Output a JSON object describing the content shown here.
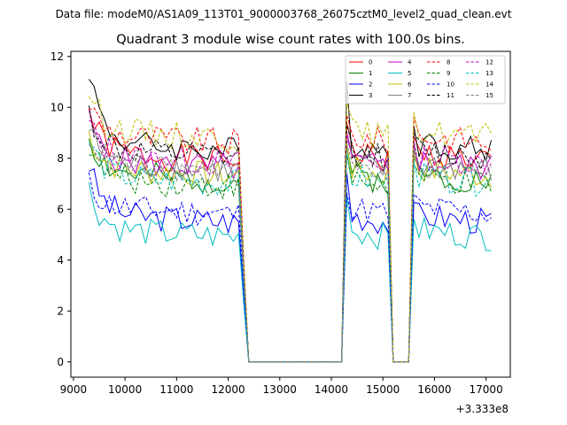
{
  "chart_data": {
    "type": "line",
    "suptitle": "Data file: modeM0/AS1A09_113T01_9000003768_26075cztM0_level2_quad_clean.evt",
    "title": "Quadrant 3 module wise count rates with 100.0s bins.",
    "xlabel": "",
    "ylabel": "",
    "x_offset_label": "+3.333e8",
    "xlim": [
      8950,
      17470
    ],
    "ylim": [
      -0.6,
      12.2
    ],
    "xticks": [
      9000,
      10000,
      11000,
      12000,
      13000,
      14000,
      15000,
      16000,
      17000
    ],
    "yticks": [
      0,
      2,
      4,
      6,
      8,
      10,
      12
    ],
    "xtick_labels": [
      "9000",
      "10000",
      "11000",
      "12000",
      "13000",
      "14000",
      "15000",
      "16000",
      "17000"
    ],
    "ytick_labels": [
      "0",
      "2",
      "4",
      "6",
      "8",
      "10",
      "12"
    ],
    "legend_position": "top-right",
    "legend_columns": 4,
    "series": [
      {
        "name": "0",
        "color": "#ff0000",
        "dash": "solid",
        "base": 8.2,
        "start": 9.9,
        "seed": 1
      },
      {
        "name": "1",
        "color": "#008000",
        "dash": "solid",
        "base": 7.4,
        "start": 8.9,
        "seed": 2
      },
      {
        "name": "2",
        "color": "#0000ff",
        "dash": "solid",
        "base": 5.8,
        "start": 7.8,
        "seed": 3
      },
      {
        "name": "3",
        "color": "#000000",
        "dash": "solid",
        "base": 8.6,
        "start": 11.6,
        "seed": 4
      },
      {
        "name": "4",
        "color": "#bf00bf",
        "dash": "solid",
        "base": 7.9,
        "start": 9.5,
        "seed": 5
      },
      {
        "name": "5",
        "color": "#00bfbf",
        "dash": "solid",
        "base": 5.2,
        "start": 6.8,
        "seed": 6
      },
      {
        "name": "6",
        "color": "#bfbf00",
        "dash": "solid",
        "base": 7.6,
        "start": 9.0,
        "seed": 7
      },
      {
        "name": "7",
        "color": "#808080",
        "dash": "solid",
        "base": 7.8,
        "start": 9.2,
        "seed": 8
      },
      {
        "name": "8",
        "color": "#ff0000",
        "dash": "dashed",
        "base": 8.9,
        "start": 10.2,
        "seed": 9
      },
      {
        "name": "9",
        "color": "#008000",
        "dash": "dashed",
        "base": 7.2,
        "start": 8.6,
        "seed": 10
      },
      {
        "name": "10",
        "color": "#0000ff",
        "dash": "dashed",
        "base": 6.1,
        "start": 7.0,
        "seed": 11
      },
      {
        "name": "11",
        "color": "#000000",
        "dash": "dashed",
        "base": 8.3,
        "start": 9.8,
        "seed": 12
      },
      {
        "name": "12",
        "color": "#bf00bf",
        "dash": "dashed",
        "base": 8.1,
        "start": 9.4,
        "seed": 13
      },
      {
        "name": "13",
        "color": "#00bfbf",
        "dash": "dashed",
        "base": 7.3,
        "start": 8.7,
        "seed": 14
      },
      {
        "name": "14",
        "color": "#bfbf00",
        "dash": "dashed",
        "base": 9.1,
        "start": 10.7,
        "seed": 15
      },
      {
        "name": "15",
        "color": "#808080",
        "dash": "dashed",
        "base": 7.7,
        "start": 9.0,
        "seed": 16
      }
    ],
    "segments": [
      {
        "x_start": 9300,
        "x_end": 12200,
        "bin": 100,
        "level": "active"
      },
      {
        "x_start": 12300,
        "x_end": 12400,
        "bin": 100,
        "level": "falling"
      },
      {
        "x_start": 12400,
        "x_end": 14200,
        "bin": 100,
        "level": "zero"
      },
      {
        "x_start": 14300,
        "x_end": 15100,
        "bin": 100,
        "level": "active"
      },
      {
        "x_start": 15200,
        "x_end": 15500,
        "bin": 100,
        "level": "zero"
      },
      {
        "x_start": 15600,
        "x_end": 17100,
        "bin": 100,
        "level": "active"
      }
    ]
  }
}
